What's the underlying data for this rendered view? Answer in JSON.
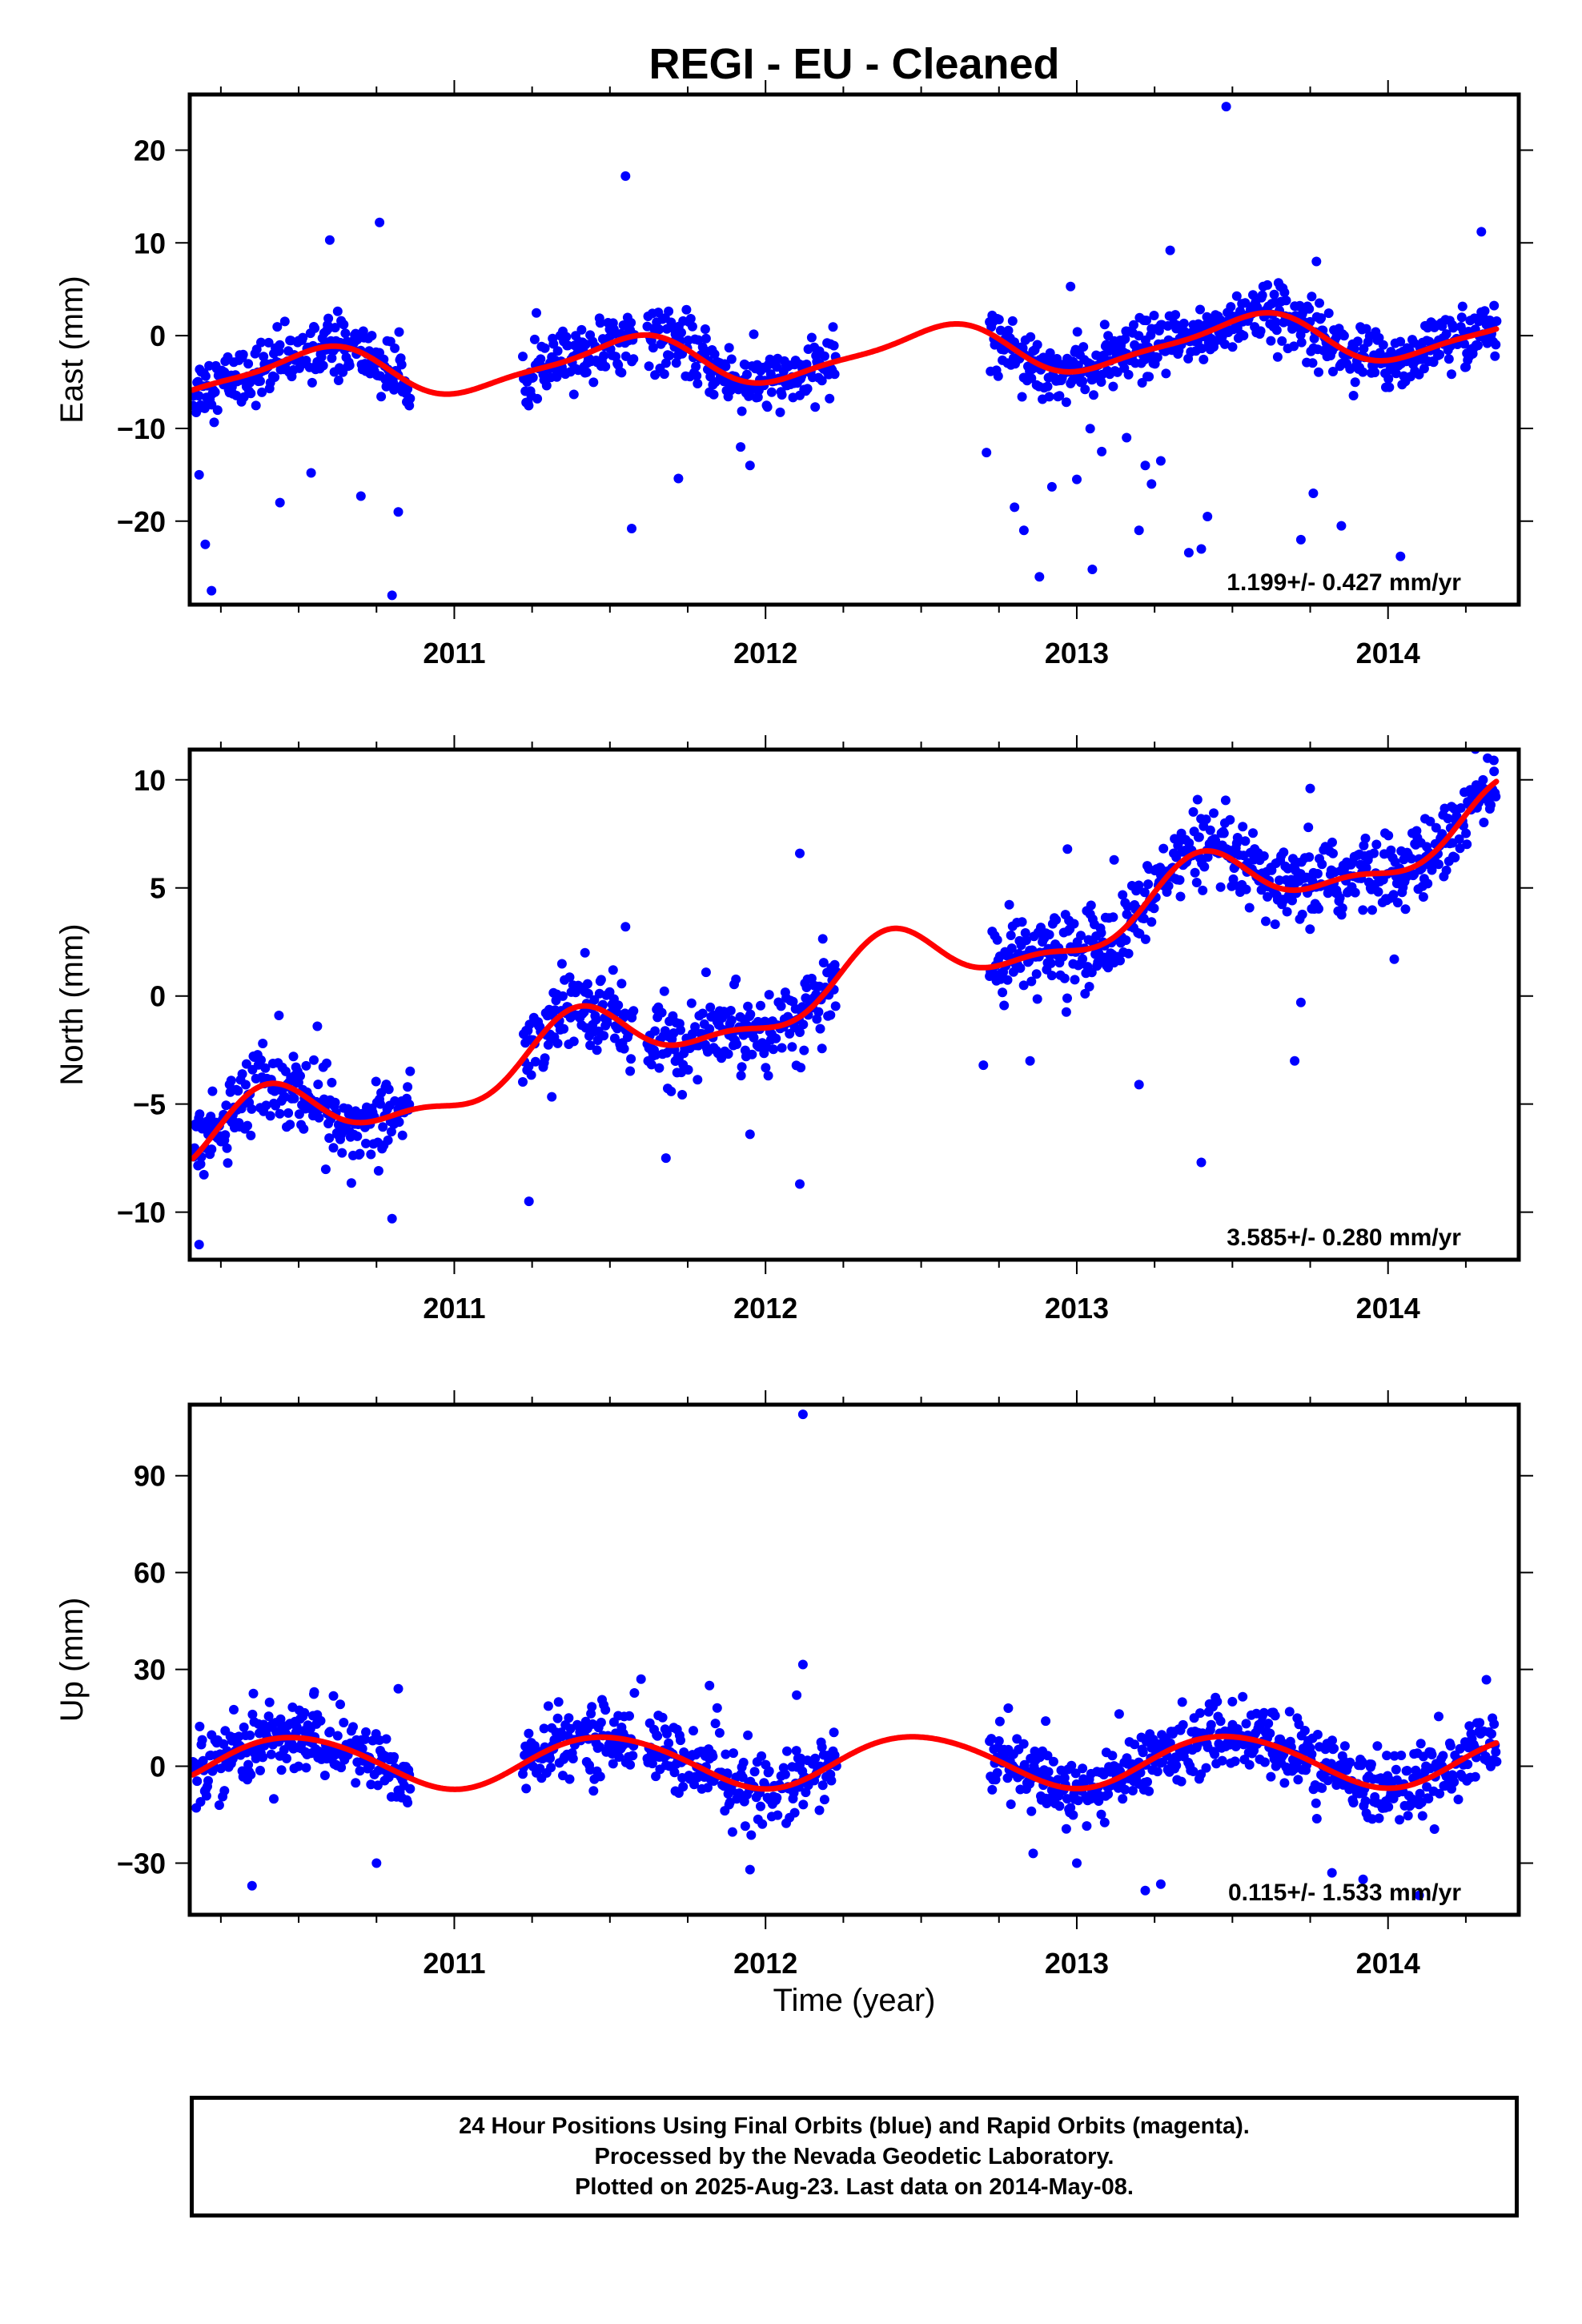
{
  "title": "REGI  - EU - Cleaned",
  "colors": {
    "final_orbits": "#0000ff",
    "model_fit": "#ff0000",
    "frame": "#000000"
  },
  "chart_data": [
    {
      "type": "scatter",
      "ylabel": "East (mm)",
      "xlabel": "",
      "xlim": [
        2010.15,
        2014.42
      ],
      "ylim": [
        -29,
        26
      ],
      "x_ticks": [
        2011,
        2012,
        2013,
        2014
      ],
      "y_ticks": [
        -20,
        -10,
        0,
        10,
        20
      ],
      "rate": "1.199+/- 0.427 mm/yr",
      "segments": [
        [
          2010.16,
          2010.86
        ],
        [
          2011.22,
          2011.58
        ],
        [
          2011.62,
          2012.23
        ],
        [
          2012.72,
          2014.35
        ]
      ],
      "model": {
        "offset": -2.0,
        "rate": 1.199,
        "ref_year": 2012.3,
        "annual_cos": -2.4,
        "annual_sin": -0.8,
        "semi_cos": -0.3,
        "semi_sin": 0.6,
        "end": 2014.35
      },
      "noise_sd": 1.6,
      "outliers": [
        [
          2010.18,
          -15.0
        ],
        [
          2010.2,
          -22.5
        ],
        [
          2010.22,
          -27.5
        ],
        [
          2010.44,
          -18.0
        ],
        [
          2010.54,
          -14.8
        ],
        [
          2010.6,
          10.3
        ],
        [
          2010.76,
          12.2
        ],
        [
          2010.8,
          -28.0
        ],
        [
          2010.82,
          -19.0
        ],
        [
          2010.7,
          -17.3
        ],
        [
          2011.55,
          17.2
        ],
        [
          2011.57,
          -20.8
        ],
        [
          2011.72,
          -15.4
        ],
        [
          2011.95,
          -14.0
        ],
        [
          2011.92,
          -12.0
        ],
        [
          2012.71,
          -12.6
        ],
        [
          2012.8,
          -18.5
        ],
        [
          2012.83,
          -21.0
        ],
        [
          2012.88,
          -26.0
        ],
        [
          2013.05,
          -25.2
        ],
        [
          2013.2,
          -21.0
        ],
        [
          2013.24,
          -16.0
        ],
        [
          2013.27,
          -13.5
        ],
        [
          2013.4,
          -23.0
        ],
        [
          2013.42,
          -19.5
        ],
        [
          2013.48,
          24.7
        ],
        [
          2013.72,
          -22.0
        ],
        [
          2013.76,
          -17.0
        ],
        [
          2013.85,
          -20.5
        ],
        [
          2014.04,
          -23.8
        ],
        [
          2012.98,
          5.3
        ],
        [
          2013.3,
          9.2
        ],
        [
          2014.3,
          11.2
        ],
        [
          2013.77,
          8.0
        ],
        [
          2013.36,
          -23.4
        ],
        [
          2013.08,
          -12.5
        ],
        [
          2013.0,
          -15.5
        ],
        [
          2012.92,
          -16.3
        ],
        [
          2013.16,
          -11.0
        ],
        [
          2013.22,
          -14.0
        ]
      ]
    },
    {
      "type": "scatter",
      "ylabel": "North (mm)",
      "xlabel": "",
      "xlim": [
        2010.15,
        2014.42
      ],
      "ylim": [
        -12.2,
        11.4
      ],
      "x_ticks": [
        2011,
        2012,
        2013,
        2014
      ],
      "y_ticks": [
        -10,
        -5,
        0,
        5,
        10
      ],
      "rate": "3.585+/- 0.280 mm/yr",
      "segments": [
        [
          2010.16,
          2010.86
        ],
        [
          2011.22,
          2011.58
        ],
        [
          2011.62,
          2012.23
        ],
        [
          2012.72,
          2014.35
        ]
      ],
      "model": {
        "offset": 0.7,
        "rate": 3.585,
        "ref_year": 2012.3,
        "annual_cos": -1.2,
        "annual_sin": 0.8,
        "semi_cos": 0.1,
        "semi_sin": -0.6,
        "end": 2014.35
      },
      "noise_sd": 0.9,
      "outliers": [
        [
          2010.18,
          -11.5
        ],
        [
          2010.56,
          -1.4
        ],
        [
          2010.8,
          -10.3
        ],
        [
          2011.24,
          -9.5
        ],
        [
          2011.42,
          2.0
        ],
        [
          2011.55,
          3.2
        ],
        [
          2011.68,
          -7.5
        ],
        [
          2012.11,
          6.6
        ],
        [
          2012.11,
          -8.7
        ],
        [
          2011.95,
          -6.4
        ],
        [
          2012.7,
          -3.2
        ],
        [
          2012.85,
          -3.0
        ],
        [
          2013.2,
          -4.1
        ],
        [
          2013.4,
          -7.7
        ],
        [
          2013.7,
          -3.0
        ],
        [
          2014.32,
          11.0
        ],
        [
          2014.34,
          10.9
        ],
        [
          2013.75,
          9.6
        ],
        [
          2014.02,
          1.7
        ],
        [
          2013.72,
          -0.3
        ],
        [
          2013.12,
          6.3
        ],
        [
          2012.97,
          6.8
        ]
      ]
    },
    {
      "type": "scatter",
      "ylabel": "Up (mm)",
      "xlabel": "Time (year)",
      "xlim": [
        2010.15,
        2014.42
      ],
      "ylim": [
        -46,
        112
      ],
      "x_ticks": [
        2011,
        2012,
        2013,
        2014
      ],
      "y_ticks": [
        -30,
        0,
        30,
        60,
        90
      ],
      "rate": "0.115+/- 1.533 mm/yr",
      "segments": [
        [
          2010.16,
          2010.86
        ],
        [
          2011.22,
          2011.58
        ],
        [
          2011.62,
          2012.23
        ],
        [
          2012.72,
          2014.35
        ]
      ],
      "model": {
        "offset": 1.5,
        "rate": 0.115,
        "ref_year": 2012.3,
        "annual_cos": -8.0,
        "annual_sin": 0.5,
        "semi_cos": -0.5,
        "semi_sin": -0.3,
        "end": 2014.35
      },
      "noise_sd": 5.5,
      "outliers": [
        [
          2012.12,
          109.0
        ],
        [
          2012.12,
          31.5
        ],
        [
          2010.35,
          -37.0
        ],
        [
          2010.75,
          -30.0
        ],
        [
          2010.82,
          24.0
        ],
        [
          2010.55,
          23.0
        ],
        [
          2011.6,
          27.0
        ],
        [
          2011.82,
          25.0
        ],
        [
          2011.95,
          -32.0
        ],
        [
          2012.1,
          22.0
        ],
        [
          2013.22,
          -38.5
        ],
        [
          2013.27,
          -36.5
        ],
        [
          2013.0,
          -30.0
        ],
        [
          2012.86,
          -27.0
        ],
        [
          2013.82,
          -33.0
        ],
        [
          2013.92,
          -35.0
        ],
        [
          2014.1,
          -40.0
        ],
        [
          2013.5,
          20.0
        ],
        [
          2012.78,
          18.0
        ],
        [
          2012.9,
          14.0
        ]
      ]
    }
  ],
  "footer": {
    "line1": "24 Hour Positions Using Final Orbits (blue) and Rapid Orbits (magenta).",
    "line2": "Processed by the Nevada Geodetic Laboratory.",
    "line3": "Plotted on 2025-Aug-23. Last data on 2014-May-08."
  }
}
